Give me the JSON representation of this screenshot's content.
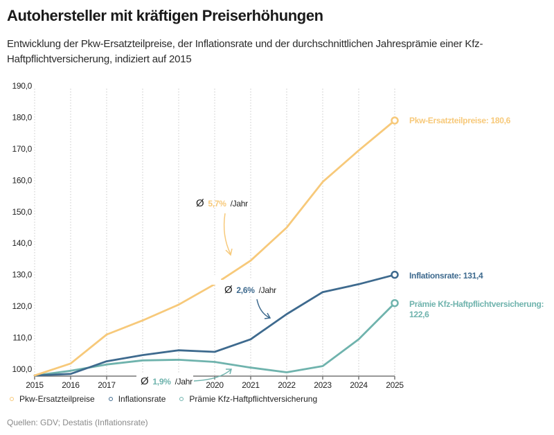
{
  "header": {
    "title": "Autohersteller mit kräftigen Preiserhöhungen",
    "subtitle": "Entwicklung der Pkw-Ersatzteilpreise, der Inflationsrate und der durchschnittlichen Jahresprämie einer Kfz-Haftpflichtversicherung, indiziert auf 2015"
  },
  "colors": {
    "pkw": "#f7c97a",
    "inflation": "#3e6a8e",
    "praemie": "#6fb3ad",
    "grid": "#c8c8c8",
    "axis": "#777777"
  },
  "chart_data": {
    "type": "line",
    "title": "Autohersteller mit kräftigen Preiserhöhungen",
    "xlabel": "",
    "ylabel": "",
    "x": [
      2015,
      2016,
      2017,
      2018,
      2019,
      2020,
      2021,
      2022,
      2023,
      2024,
      2025
    ],
    "x_tick_labels": [
      "2015",
      "2016",
      "2017",
      "",
      "",
      "2020",
      "2021",
      "2022",
      "2023",
      "2024",
      "2025"
    ],
    "y_ticks": [
      100,
      110,
      120,
      130,
      140,
      150,
      160,
      170,
      180,
      190
    ],
    "y_tick_labels": [
      "100,0",
      "110,0",
      "120,0",
      "130,0",
      "140,0",
      "150,0",
      "160,0",
      "170,0",
      "180,0",
      "190,0"
    ],
    "ylim": [
      97.8,
      190
    ],
    "grid": "vertical-dotted",
    "legend_position": "bottom-left",
    "series": [
      {
        "key": "pkw",
        "name": "Pkw-Ersatzteilpreise",
        "values": [
          98,
          101.8,
          111,
          115.5,
          120.5,
          127,
          134.5,
          145,
          159.5,
          169.5,
          179
        ],
        "end_label": "Pkw-Ersatzteilpreise: 180,6"
      },
      {
        "key": "inflation",
        "name": "Inflationsrate",
        "values": [
          98,
          98.5,
          102.5,
          104.5,
          106,
          105.5,
          109.5,
          117.5,
          124.5,
          127,
          130
        ],
        "end_label": "Inflationsrate: 131,4"
      },
      {
        "key": "praemie",
        "name": "Prämie Kfz-Haftpflichtversicherung",
        "values": [
          98,
          99.5,
          101.5,
          102.8,
          103,
          102.3,
          100.5,
          99,
          101,
          109.5,
          121
        ],
        "end_label_line1": "Prämie Kfz-Haftpflichtversicherung:",
        "end_label_line2": "122,6"
      }
    ],
    "annotations": [
      {
        "series": "pkw",
        "symbol": "Ø",
        "value": "5,7%",
        "suffix": "/Jahr"
      },
      {
        "series": "inflation",
        "symbol": "Ø",
        "value": "2,6%",
        "suffix": "/Jahr"
      },
      {
        "series": "praemie",
        "symbol": "Ø",
        "value": "1,9%",
        "suffix": "/Jahr"
      }
    ]
  },
  "legend": {
    "items": [
      {
        "label": "Pkw-Ersatzteilpreise"
      },
      {
        "label": "Inflationsrate"
      },
      {
        "label": "Prämie Kfz-Haftpflichtversicherung"
      }
    ]
  },
  "footer": {
    "source": "Quellen: GDV; Destatis (Inflationsrate)"
  }
}
